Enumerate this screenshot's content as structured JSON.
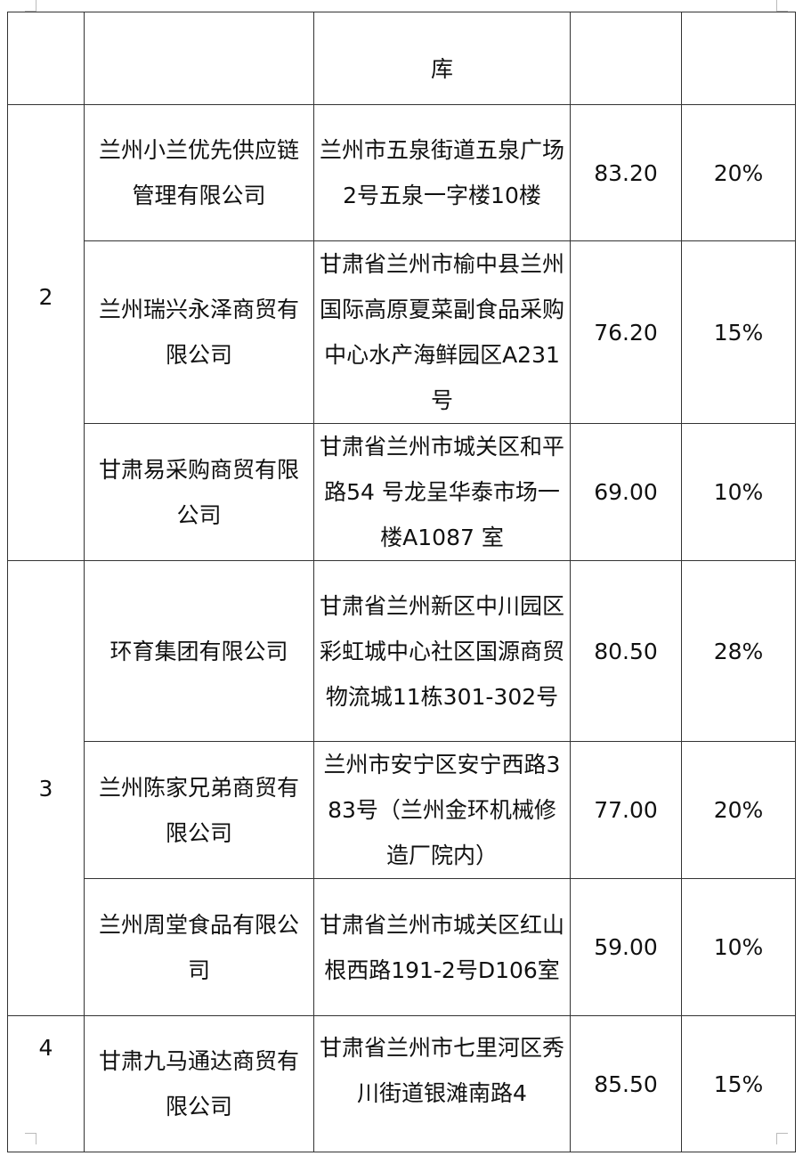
{
  "header_row": {
    "address_tail": "库"
  },
  "groups": [
    {
      "no": "2",
      "rows": [
        {
          "company": "兰州小兰优先供应链管理有限公司",
          "address": "兰州市五泉街道五泉广场2号五泉一字楼10楼",
          "score": "83.20",
          "ratio": "20%"
        },
        {
          "company": "兰州瑞兴永泽商贸有限公司",
          "address": "甘肃省兰州市榆中县兰州国际高原夏菜副食品采购中心水产海鲜园区A231号",
          "score": "76.20",
          "ratio": "15%"
        },
        {
          "company": "甘肃易采购商贸有限公司",
          "address": "甘肃省兰州市城关区和平路54 号龙呈华泰市场一楼A1087 室",
          "score": "69.00",
          "ratio": "10%"
        }
      ]
    },
    {
      "no": "3",
      "rows": [
        {
          "company": "环育集团有限公司",
          "address": "甘肃省兰州新区中川园区彩虹城中心社区国源商贸物流城11栋301-302号",
          "score": "80.50",
          "ratio": "28%"
        },
        {
          "company": "兰州陈家兄弟商贸有限公司",
          "address": "兰州市安宁区安宁西路383号（兰州金环机械修造厂院内）",
          "score": "77.00",
          "ratio": "20%"
        },
        {
          "company": "兰州周堂食品有限公司",
          "address": "甘肃省兰州市城关区红山根西路191-2号D106室",
          "score": "59.00",
          "ratio": "10%"
        }
      ]
    },
    {
      "no": "4",
      "rows": [
        {
          "company": "甘肃九马通达商贸有限公司",
          "address": "甘肃省兰州市七里河区秀川街道银滩南路4",
          "score": "85.50",
          "ratio": "15%"
        }
      ]
    }
  ]
}
